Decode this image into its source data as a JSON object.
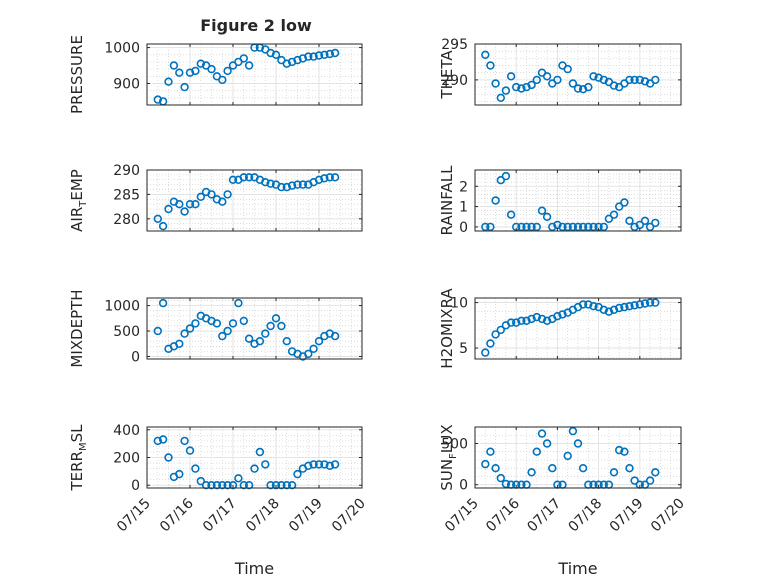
{
  "figure_title": "Figure 2 low",
  "colors": {
    "marker": "#0072BD",
    "axis": "#262626",
    "grid": "#dfdfdf",
    "minor_grid": "#c8c8c8",
    "background": "#ffffff"
  },
  "chart_data": [
    {
      "type": "scatter",
      "marker": "open-circle",
      "title": "Figure 2 low",
      "ylabel": "PRESSURE",
      "xlabel": "",
      "xlim": [
        "07/15",
        "07/20"
      ],
      "ylim": [
        840,
        1010
      ],
      "yticks": [
        900,
        1000
      ],
      "ytick_labels": [
        "900",
        "1000"
      ],
      "xticks": [],
      "grid": true,
      "minor_grid": true,
      "x": [
        "07/15 06:00",
        "07/15 09:00",
        "07/15 12:00",
        "07/15 15:00",
        "07/15 18:00",
        "07/15 21:00",
        "07/16 00:00",
        "07/16 03:00",
        "07/16 06:00",
        "07/16 09:00",
        "07/16 12:00",
        "07/16 15:00",
        "07/16 18:00",
        "07/16 21:00",
        "07/17 00:00",
        "07/17 03:00",
        "07/17 06:00",
        "07/17 09:00",
        "07/17 12:00",
        "07/17 15:00",
        "07/17 18:00",
        "07/17 21:00",
        "07/18 00:00",
        "07/18 03:00",
        "07/18 06:00",
        "07/18 09:00",
        "07/18 12:00",
        "07/18 15:00",
        "07/18 18:00",
        "07/18 21:00",
        "07/19 00:00",
        "07/19 03:00",
        "07/19 06:00",
        "07/19 09:00"
      ],
      "y": [
        855,
        850,
        905,
        950,
        930,
        890,
        930,
        935,
        955,
        950,
        940,
        920,
        910,
        935,
        950,
        960,
        970,
        950,
        1000,
        1000,
        995,
        985,
        980,
        965,
        955,
        960,
        965,
        970,
        975,
        975,
        978,
        980,
        982,
        985
      ]
    },
    {
      "type": "scatter",
      "marker": "open-circle",
      "ylabel": "THETA",
      "xlabel": "",
      "xlim": [
        "07/15",
        "07/20"
      ],
      "ylim": [
        286.5,
        295
      ],
      "yticks": [
        290,
        295
      ],
      "ytick_labels": [
        "290",
        "295"
      ],
      "xticks": [],
      "grid": true,
      "minor_grid": true,
      "x": [
        "07/15 06:00",
        "07/15 09:00",
        "07/15 12:00",
        "07/15 15:00",
        "07/15 18:00",
        "07/15 21:00",
        "07/16 00:00",
        "07/16 03:00",
        "07/16 06:00",
        "07/16 09:00",
        "07/16 12:00",
        "07/16 15:00",
        "07/16 18:00",
        "07/16 21:00",
        "07/17 00:00",
        "07/17 03:00",
        "07/17 06:00",
        "07/17 09:00",
        "07/17 12:00",
        "07/17 15:00",
        "07/17 18:00",
        "07/17 21:00",
        "07/18 00:00",
        "07/18 03:00",
        "07/18 06:00",
        "07/18 09:00",
        "07/18 12:00",
        "07/18 15:00",
        "07/18 18:00",
        "07/18 21:00",
        "07/19 00:00",
        "07/19 03:00",
        "07/19 06:00",
        "07/19 09:00"
      ],
      "y": [
        293.5,
        292.0,
        289.5,
        287.5,
        288.5,
        290.5,
        289.0,
        288.8,
        289.0,
        289.3,
        290.0,
        291.0,
        290.5,
        289.5,
        290.0,
        292.0,
        291.5,
        289.5,
        288.8,
        288.7,
        289.0,
        290.5,
        290.3,
        290.0,
        289.7,
        289.2,
        289.0,
        289.5,
        290.0,
        290.0,
        290.0,
        289.8,
        289.5,
        290.0
      ]
    },
    {
      "type": "scatter",
      "marker": "open-circle",
      "ylabel": "AIR_TEMP",
      "ylabel_parts": {
        "main": "AIR",
        "sub": "T",
        "rest": "EMP"
      },
      "xlabel": "",
      "xlim": [
        "07/15",
        "07/20"
      ],
      "ylim": [
        277.5,
        290
      ],
      "yticks": [
        280,
        285,
        290
      ],
      "ytick_labels": [
        "280",
        "285",
        "290"
      ],
      "xticks": [],
      "grid": true,
      "minor_grid": true,
      "x": [
        "07/15 06:00",
        "07/15 09:00",
        "07/15 12:00",
        "07/15 15:00",
        "07/15 18:00",
        "07/15 21:00",
        "07/16 00:00",
        "07/16 03:00",
        "07/16 06:00",
        "07/16 09:00",
        "07/16 12:00",
        "07/16 15:00",
        "07/16 18:00",
        "07/16 21:00",
        "07/17 00:00",
        "07/17 03:00",
        "07/17 06:00",
        "07/17 09:00",
        "07/17 12:00",
        "07/17 15:00",
        "07/17 18:00",
        "07/17 21:00",
        "07/18 00:00",
        "07/18 03:00",
        "07/18 06:00",
        "07/18 09:00",
        "07/18 12:00",
        "07/18 15:00",
        "07/18 18:00",
        "07/18 21:00",
        "07/19 00:00",
        "07/19 03:00",
        "07/19 06:00",
        "07/19 09:00"
      ],
      "y": [
        280.0,
        278.5,
        282.0,
        283.5,
        283.0,
        281.5,
        283.0,
        283.0,
        284.5,
        285.5,
        285.0,
        284.0,
        283.5,
        285.0,
        288.0,
        288.0,
        288.5,
        288.5,
        288.5,
        288.0,
        287.5,
        287.2,
        287.0,
        286.5,
        286.5,
        286.8,
        287.0,
        287.0,
        287.0,
        287.5,
        288.0,
        288.3,
        288.5,
        288.5
      ]
    },
    {
      "type": "scatter",
      "marker": "open-circle",
      "ylabel": "RAINFALL",
      "xlabel": "",
      "xlim": [
        "07/15",
        "07/20"
      ],
      "ylim": [
        -0.2,
        2.8
      ],
      "yticks": [
        0,
        1,
        2
      ],
      "ytick_labels": [
        "0",
        "1",
        "2"
      ],
      "xticks": [],
      "grid": true,
      "minor_grid": true,
      "x": [
        "07/15 06:00",
        "07/15 09:00",
        "07/15 12:00",
        "07/15 15:00",
        "07/15 18:00",
        "07/15 21:00",
        "07/16 00:00",
        "07/16 03:00",
        "07/16 06:00",
        "07/16 09:00",
        "07/16 12:00",
        "07/16 15:00",
        "07/16 18:00",
        "07/16 21:00",
        "07/17 00:00",
        "07/17 03:00",
        "07/17 06:00",
        "07/17 09:00",
        "07/17 12:00",
        "07/17 15:00",
        "07/17 18:00",
        "07/17 21:00",
        "07/18 00:00",
        "07/18 03:00",
        "07/18 06:00",
        "07/18 09:00",
        "07/18 12:00",
        "07/18 15:00",
        "07/18 18:00",
        "07/18 21:00",
        "07/19 00:00",
        "07/19 03:00",
        "07/19 06:00",
        "07/19 09:00"
      ],
      "y": [
        0.0,
        0.0,
        1.3,
        2.3,
        2.5,
        0.6,
        0.0,
        0.0,
        0.0,
        0.0,
        0.0,
        0.8,
        0.5,
        0.0,
        0.1,
        0.0,
        0.0,
        0.0,
        0.0,
        0.0,
        0.0,
        0.0,
        0.0,
        0.0,
        0.4,
        0.6,
        1.0,
        1.2,
        0.3,
        0.0,
        0.1,
        0.3,
        0.0,
        0.2
      ]
    },
    {
      "type": "scatter",
      "marker": "open-circle",
      "ylabel": "MIXDEPTH",
      "xlabel": "",
      "xlim": [
        "07/15",
        "07/20"
      ],
      "ylim": [
        -50,
        1150
      ],
      "yticks": [
        0,
        500,
        1000
      ],
      "ytick_labels": [
        "0",
        "500",
        "1000"
      ],
      "xticks": [],
      "grid": true,
      "minor_grid": true,
      "x": [
        "07/15 06:00",
        "07/15 09:00",
        "07/15 12:00",
        "07/15 15:00",
        "07/15 18:00",
        "07/15 21:00",
        "07/16 00:00",
        "07/16 03:00",
        "07/16 06:00",
        "07/16 09:00",
        "07/16 12:00",
        "07/16 15:00",
        "07/16 18:00",
        "07/16 21:00",
        "07/17 00:00",
        "07/17 03:00",
        "07/17 06:00",
        "07/17 09:00",
        "07/17 12:00",
        "07/17 15:00",
        "07/17 18:00",
        "07/17 21:00",
        "07/18 00:00",
        "07/18 03:00",
        "07/18 06:00",
        "07/18 09:00",
        "07/18 12:00",
        "07/18 15:00",
        "07/18 18:00",
        "07/18 21:00",
        "07/19 00:00",
        "07/19 03:00",
        "07/19 06:00",
        "07/19 09:00"
      ],
      "y": [
        500,
        1050,
        150,
        200,
        250,
        450,
        550,
        650,
        800,
        750,
        700,
        650,
        400,
        500,
        650,
        1050,
        700,
        350,
        250,
        300,
        450,
        600,
        750,
        600,
        300,
        100,
        50,
        0,
        50,
        150,
        300,
        400,
        450,
        400
      ]
    },
    {
      "type": "scatter",
      "marker": "open-circle",
      "ylabel": "H2OMIXRA",
      "xlabel": "",
      "xlim": [
        "07/15",
        "07/20"
      ],
      "ylim": [
        3.8,
        10.5
      ],
      "yticks": [
        5,
        10
      ],
      "ytick_labels": [
        "5",
        "10"
      ],
      "xticks": [],
      "grid": true,
      "minor_grid": true,
      "x": [
        "07/15 06:00",
        "07/15 09:00",
        "07/15 12:00",
        "07/15 15:00",
        "07/15 18:00",
        "07/15 21:00",
        "07/16 00:00",
        "07/16 03:00",
        "07/16 06:00",
        "07/16 09:00",
        "07/16 12:00",
        "07/16 15:00",
        "07/16 18:00",
        "07/16 21:00",
        "07/17 00:00",
        "07/17 03:00",
        "07/17 06:00",
        "07/17 09:00",
        "07/17 12:00",
        "07/17 15:00",
        "07/17 18:00",
        "07/17 21:00",
        "07/18 00:00",
        "07/18 03:00",
        "07/18 06:00",
        "07/18 09:00",
        "07/18 12:00",
        "07/18 15:00",
        "07/18 18:00",
        "07/18 21:00",
        "07/19 00:00",
        "07/19 03:00",
        "07/19 06:00",
        "07/19 09:00"
      ],
      "y": [
        4.5,
        5.5,
        6.5,
        7.0,
        7.5,
        7.8,
        7.8,
        8.0,
        8.0,
        8.2,
        8.4,
        8.2,
        8.0,
        8.2,
        8.5,
        8.7,
        8.9,
        9.2,
        9.5,
        9.8,
        9.8,
        9.6,
        9.5,
        9.2,
        9.0,
        9.2,
        9.4,
        9.5,
        9.6,
        9.7,
        9.8,
        9.9,
        10.0,
        10.0
      ]
    },
    {
      "type": "scatter",
      "marker": "open-circle",
      "ylabel": "TERR_MSL",
      "ylabel_parts": {
        "main": "TERR",
        "sub": "M",
        "rest": "SL"
      },
      "xlabel": "Time",
      "xlim": [
        "07/15",
        "07/20"
      ],
      "ylim": [
        -20,
        420
      ],
      "yticks": [
        0,
        200,
        400
      ],
      "ytick_labels": [
        "0",
        "200",
        "400"
      ],
      "xticks": [
        "07/15",
        "07/16",
        "07/17",
        "07/18",
        "07/19",
        "07/20"
      ],
      "grid": true,
      "minor_grid": true,
      "x": [
        "07/15 06:00",
        "07/15 09:00",
        "07/15 12:00",
        "07/15 15:00",
        "07/15 18:00",
        "07/15 21:00",
        "07/16 00:00",
        "07/16 03:00",
        "07/16 06:00",
        "07/16 09:00",
        "07/16 12:00",
        "07/16 15:00",
        "07/16 18:00",
        "07/16 21:00",
        "07/17 00:00",
        "07/17 03:00",
        "07/17 06:00",
        "07/17 09:00",
        "07/17 12:00",
        "07/17 15:00",
        "07/17 18:00",
        "07/17 21:00",
        "07/18 00:00",
        "07/18 03:00",
        "07/18 06:00",
        "07/18 09:00",
        "07/18 12:00",
        "07/18 15:00",
        "07/18 18:00",
        "07/18 21:00",
        "07/19 00:00",
        "07/19 03:00",
        "07/19 06:00",
        "07/19 09:00"
      ],
      "y": [
        320,
        330,
        200,
        60,
        80,
        320,
        250,
        120,
        30,
        0,
        0,
        0,
        0,
        0,
        0,
        50,
        0,
        0,
        120,
        240,
        150,
        0,
        0,
        0,
        0,
        0,
        80,
        120,
        140,
        150,
        150,
        150,
        140,
        150
      ]
    },
    {
      "type": "scatter",
      "marker": "open-circle",
      "ylabel": "SUN_FLUX",
      "ylabel_parts": {
        "main": "SUN",
        "sub": "F",
        "rest": "LUX"
      },
      "xlabel": "Time",
      "xlim": [
        "07/15",
        "07/20"
      ],
      "ylim": [
        -40,
        700
      ],
      "yticks": [
        0,
        500
      ],
      "ytick_labels": [
        "0",
        "500"
      ],
      "xticks": [
        "07/15",
        "07/16",
        "07/17",
        "07/18",
        "07/19",
        "07/20"
      ],
      "grid": true,
      "minor_grid": true,
      "x": [
        "07/15 06:00",
        "07/15 09:00",
        "07/15 12:00",
        "07/15 15:00",
        "07/15 18:00",
        "07/15 21:00",
        "07/16 00:00",
        "07/16 03:00",
        "07/16 06:00",
        "07/16 09:00",
        "07/16 12:00",
        "07/16 15:00",
        "07/16 18:00",
        "07/16 21:00",
        "07/17 00:00",
        "07/17 03:00",
        "07/17 06:00",
        "07/17 09:00",
        "07/17 12:00",
        "07/17 15:00",
        "07/17 18:00",
        "07/17 21:00",
        "07/18 00:00",
        "07/18 03:00",
        "07/18 06:00",
        "07/18 09:00",
        "07/18 12:00",
        "07/18 15:00",
        "07/18 18:00",
        "07/18 21:00",
        "07/19 00:00",
        "07/19 03:00",
        "07/19 06:00",
        "07/19 09:00"
      ],
      "y": [
        250,
        400,
        200,
        80,
        10,
        0,
        0,
        0,
        0,
        150,
        400,
        620,
        500,
        200,
        0,
        0,
        350,
        650,
        500,
        200,
        0,
        0,
        0,
        0,
        0,
        150,
        420,
        400,
        200,
        50,
        0,
        0,
        50,
        150
      ]
    }
  ]
}
